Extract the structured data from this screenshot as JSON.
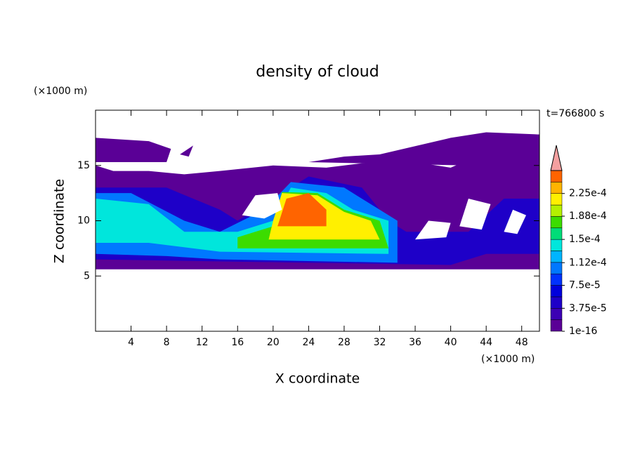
{
  "chart_data": {
    "type": "contour",
    "title": "density of cloud",
    "xlabel": "X coordinate",
    "ylabel": "Z coordinate",
    "x_unit": "(×1000 m)",
    "y_unit": "(×1000 m)",
    "time_label": "t=766800 s",
    "xlim": [
      0,
      50
    ],
    "ylim": [
      0,
      20
    ],
    "xticks": [
      4,
      8,
      12,
      16,
      20,
      24,
      28,
      32,
      36,
      40,
      44,
      48
    ],
    "yticks": [
      5,
      10,
      15
    ],
    "levels": [
      1e-16,
      1.875e-05,
      3.75e-05,
      5.625e-05,
      7.5e-05,
      9.375e-05,
      0.0001125,
      0.00013125,
      0.00015,
      0.00016875,
      0.0001875,
      0.00020625,
      0.000225,
      0.00024375,
      0.0002625
    ],
    "colors": [
      "#5a0096",
      "#3c00b4",
      "#1e00c8",
      "#0000dc",
      "#0032ff",
      "#0078ff",
      "#00b4ff",
      "#00e6dc",
      "#00dc78",
      "#3cdc00",
      "#b4f000",
      "#fff000",
      "#ffb400",
      "#ff6400"
    ],
    "extend_color": "#f4a0a0",
    "colorbar_ticks": [
      {
        "value": 1e-16,
        "label": "1e-16"
      },
      {
        "value": 3.75e-05,
        "label": "3.75e-5"
      },
      {
        "value": 7.5e-05,
        "label": "7.5e-5"
      },
      {
        "value": 0.000112,
        "label": "1.12e-4"
      },
      {
        "value": 0.00015,
        "label": "1.5e-4"
      },
      {
        "value": 0.000188,
        "label": "1.88e-4"
      },
      {
        "value": 0.000225,
        "label": "2.25e-4"
      }
    ]
  }
}
